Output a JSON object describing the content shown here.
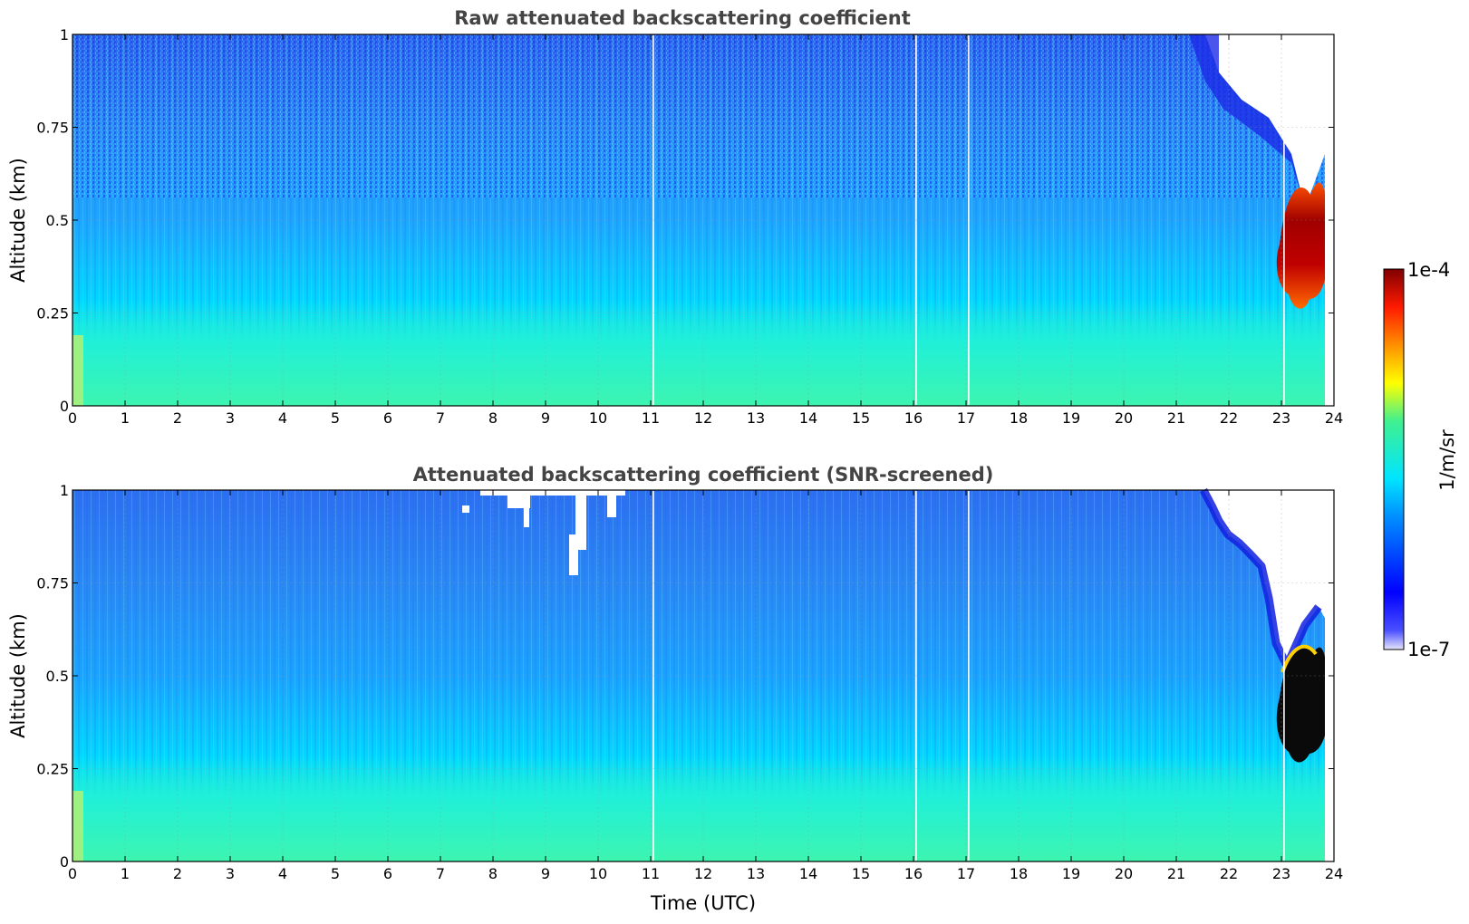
{
  "chart_data": [
    {
      "type": "heatmap",
      "title": "Raw attenuated backscattering coefficient",
      "ylabel": "Altitude (km)",
      "xlabel": "",
      "xlim": [
        0,
        24
      ],
      "ylim": [
        0,
        1
      ],
      "xticks": [
        "0",
        "1",
        "2",
        "3",
        "4",
        "5",
        "6",
        "7",
        "8",
        "9",
        "10",
        "11",
        "12",
        "13",
        "14",
        "15",
        "16",
        "17",
        "18",
        "19",
        "20",
        "21",
        "22",
        "23",
        "24"
      ],
      "yticks": [
        "0",
        "0.25",
        "0.5",
        "0.75",
        "1"
      ],
      "grid": true,
      "colorscale": "jet-log",
      "data_gaps_utc": [
        11.05,
        16.05,
        17.05,
        23.05
      ],
      "features": [
        {
          "kind": "surface-layer",
          "time_range": [
            0,
            23.8
          ],
          "altitude_range": [
            0,
            0.3
          ],
          "level": "high"
        },
        {
          "kind": "noisy-upper-region",
          "time_range": [
            0,
            23.8
          ],
          "altitude_range": [
            0.6,
            1.0
          ],
          "level": "low"
        },
        {
          "kind": "cloud",
          "time_range": [
            22.9,
            23.8
          ],
          "altitude_range": [
            0.28,
            0.65
          ],
          "level": "very-high"
        },
        {
          "kind": "no-signal-above-cloud",
          "time_range": [
            21.6,
            23.8
          ],
          "altitude_range": [
            0.55,
            1.0
          ],
          "level": "none"
        }
      ]
    },
    {
      "type": "heatmap",
      "title": "Attenuated backscattering coefficient (SNR-screened)",
      "ylabel": "Altitude (km)",
      "xlabel": "Time (UTC)",
      "xlim": [
        0,
        24
      ],
      "ylim": [
        0,
        1
      ],
      "xticks": [
        "0",
        "1",
        "2",
        "3",
        "4",
        "5",
        "6",
        "7",
        "8",
        "9",
        "10",
        "11",
        "12",
        "13",
        "14",
        "15",
        "16",
        "17",
        "18",
        "19",
        "20",
        "21",
        "22",
        "23",
        "24"
      ],
      "yticks": [
        "0",
        "0.25",
        "0.5",
        "0.75",
        "1"
      ],
      "grid": true,
      "colorscale": "jet-log",
      "data_gaps_utc": [
        11.05,
        16.05,
        17.05,
        23.05
      ],
      "features": [
        {
          "kind": "surface-layer",
          "time_range": [
            0,
            23.8
          ],
          "altitude_range": [
            0,
            0.3
          ],
          "level": "high"
        },
        {
          "kind": "screened-out",
          "time_range": [
            7.5,
            10.3
          ],
          "altitude_range": [
            0.75,
            1.0
          ],
          "level": "none"
        },
        {
          "kind": "screened-out",
          "time_range": [
            21.2,
            23.8
          ],
          "altitude_range": [
            0.55,
            1.0
          ],
          "level": "none"
        },
        {
          "kind": "cloud-saturated",
          "time_range": [
            22.9,
            23.8
          ],
          "altitude_range": [
            0.28,
            0.6
          ],
          "level": "saturated"
        }
      ]
    }
  ],
  "colorbar": {
    "label": "1/m/sr",
    "max_label": "1e-4",
    "min_label": "1e-7",
    "colors": [
      "#e6e6fa",
      "#0000ff",
      "#00e5ff",
      "#ffff00",
      "#ff4000",
      "#800000"
    ]
  }
}
